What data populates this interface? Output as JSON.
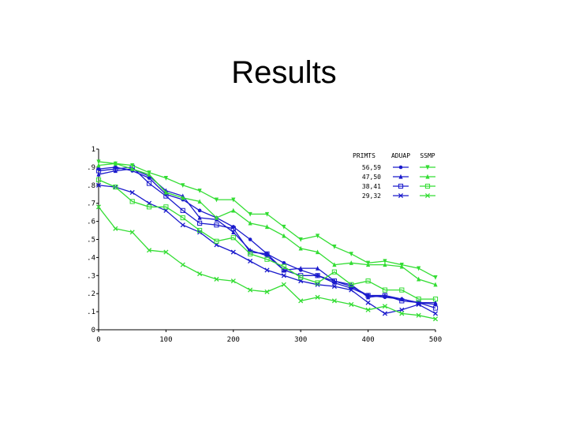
{
  "slide": {
    "title": "Results"
  },
  "chart_data": {
    "type": "line",
    "title": "",
    "xlabel": "",
    "ylabel": "",
    "xlim": [
      0,
      500
    ],
    "ylim": [
      0,
      1
    ],
    "x_ticks": [
      "0",
      "100",
      "200",
      "300",
      "400",
      "500"
    ],
    "y_ticks": [
      "0",
      ".1",
      ".2",
      ".3",
      ".4",
      ".5",
      ".6",
      ".7",
      ".8",
      ".9",
      "1"
    ],
    "grid": false,
    "legend": {
      "placement": "top-right",
      "row_header": "PRIMTS",
      "column_headers": [
        "ADUAP",
        "SSMP"
      ],
      "rows": [
        "56,59",
        "47,50",
        "38,41",
        "29,32"
      ]
    },
    "colors": {
      "ADUAP": "#1a1acc",
      "SSMP": "#33dd33"
    },
    "x": [
      0,
      25,
      50,
      75,
      100,
      125,
      150,
      175,
      200,
      225,
      250,
      275,
      300,
      325,
      350,
      375,
      400,
      425,
      450,
      475,
      500
    ],
    "series": [
      {
        "group": "ADUAP",
        "row": "56,59",
        "marker": "circle",
        "values": [
          0.89,
          0.9,
          0.88,
          0.84,
          0.75,
          0.72,
          0.66,
          0.62,
          0.57,
          0.5,
          0.42,
          0.37,
          0.33,
          0.3,
          0.26,
          0.23,
          0.19,
          0.18,
          0.17,
          0.15,
          0.14
        ]
      },
      {
        "group": "ADUAP",
        "row": "47,50",
        "marker": "triangle-up",
        "values": [
          0.86,
          0.88,
          0.89,
          0.85,
          0.77,
          0.74,
          0.62,
          0.61,
          0.54,
          0.44,
          0.41,
          0.33,
          0.34,
          0.34,
          0.27,
          0.25,
          0.18,
          0.19,
          0.17,
          0.15,
          0.15
        ]
      },
      {
        "group": "ADUAP",
        "row": "38,41",
        "marker": "square",
        "values": [
          0.88,
          0.89,
          0.9,
          0.81,
          0.74,
          0.66,
          0.59,
          0.58,
          0.56,
          0.43,
          0.42,
          0.33,
          0.3,
          0.3,
          0.27,
          0.24,
          0.19,
          0.19,
          0.16,
          0.15,
          0.12
        ]
      },
      {
        "group": "ADUAP",
        "row": "29,32",
        "marker": "x",
        "values": [
          0.8,
          0.79,
          0.76,
          0.7,
          0.66,
          0.58,
          0.54,
          0.47,
          0.43,
          0.38,
          0.33,
          0.3,
          0.27,
          0.25,
          0.24,
          0.22,
          0.15,
          0.09,
          0.11,
          0.14,
          0.09
        ]
      },
      {
        "group": "SSMP",
        "row": "56,59",
        "marker": "triangle-down",
        "values": [
          0.93,
          0.92,
          0.91,
          0.87,
          0.84,
          0.8,
          0.77,
          0.72,
          0.72,
          0.64,
          0.64,
          0.57,
          0.5,
          0.52,
          0.46,
          0.42,
          0.37,
          0.38,
          0.36,
          0.34,
          0.29
        ]
      },
      {
        "group": "SSMP",
        "row": "47,50",
        "marker": "triangle-up",
        "values": [
          0.91,
          0.92,
          0.89,
          0.86,
          0.76,
          0.73,
          0.71,
          0.62,
          0.66,
          0.59,
          0.57,
          0.52,
          0.45,
          0.43,
          0.36,
          0.37,
          0.36,
          0.36,
          0.35,
          0.28,
          0.25
        ]
      },
      {
        "group": "SSMP",
        "row": "38,41",
        "marker": "square",
        "values": [
          0.83,
          0.79,
          0.71,
          0.68,
          0.68,
          0.62,
          0.55,
          0.49,
          0.51,
          0.42,
          0.39,
          0.35,
          0.29,
          0.26,
          0.32,
          0.25,
          0.27,
          0.22,
          0.22,
          0.17,
          0.17
        ]
      },
      {
        "group": "SSMP",
        "row": "29,32",
        "marker": "x",
        "values": [
          0.68,
          0.56,
          0.54,
          0.44,
          0.43,
          0.36,
          0.31,
          0.28,
          0.27,
          0.22,
          0.21,
          0.25,
          0.16,
          0.18,
          0.16,
          0.14,
          0.11,
          0.13,
          0.09,
          0.08,
          0.06
        ]
      }
    ]
  }
}
